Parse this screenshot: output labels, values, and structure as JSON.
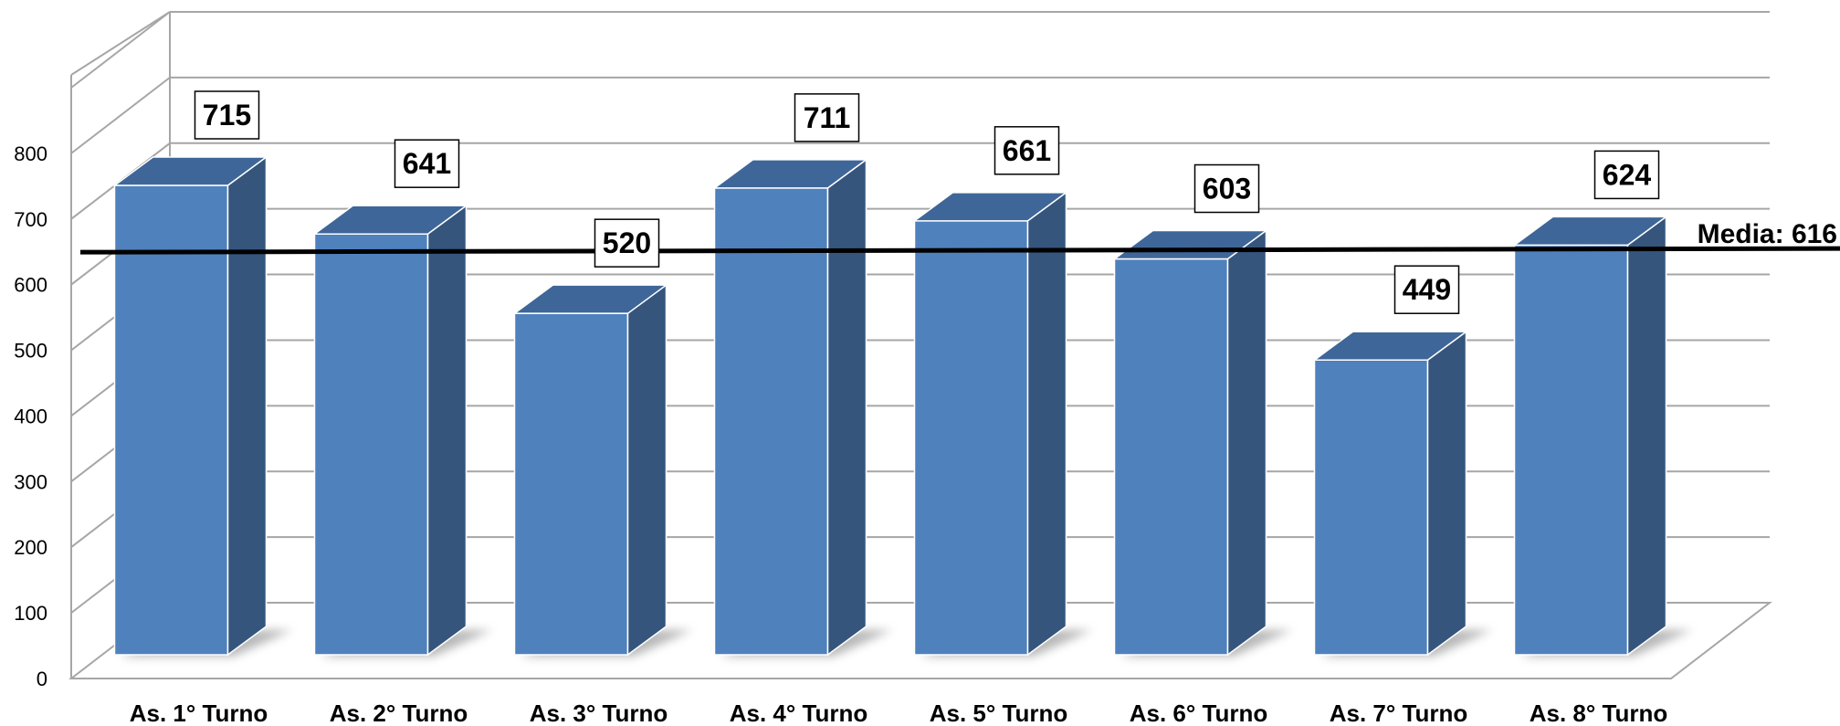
{
  "chart_data": {
    "type": "bar",
    "style": "3d-column",
    "categories": [
      "As. 1° Turno",
      "As. 2° Turno",
      "As. 3° Turno",
      "As. 4° Turno",
      "As. 5° Turno",
      "As. 6° Turno",
      "As. 7° Turno",
      "As. 8° Turno"
    ],
    "series": [
      {
        "values": [
          715,
          641,
          520,
          711,
          661,
          603,
          449,
          624
        ]
      }
    ],
    "data_labels": [
      "715",
      "641",
      "520",
      "711",
      "661",
      "603",
      "449",
      "624"
    ],
    "yticks": [
      "0",
      "100",
      "200",
      "300",
      "400",
      "500",
      "600",
      "700",
      "800"
    ],
    "ylim": [
      0,
      900
    ],
    "grid": true,
    "legend": "none",
    "reference_line": {
      "label": "Media: 616",
      "value": 616
    },
    "colors": {
      "bar_front": "#4f81bd",
      "bar_side": "#35557d",
      "bar_top": "#3f6698",
      "grid": "#a6a6a6",
      "reference": "#000000"
    }
  }
}
